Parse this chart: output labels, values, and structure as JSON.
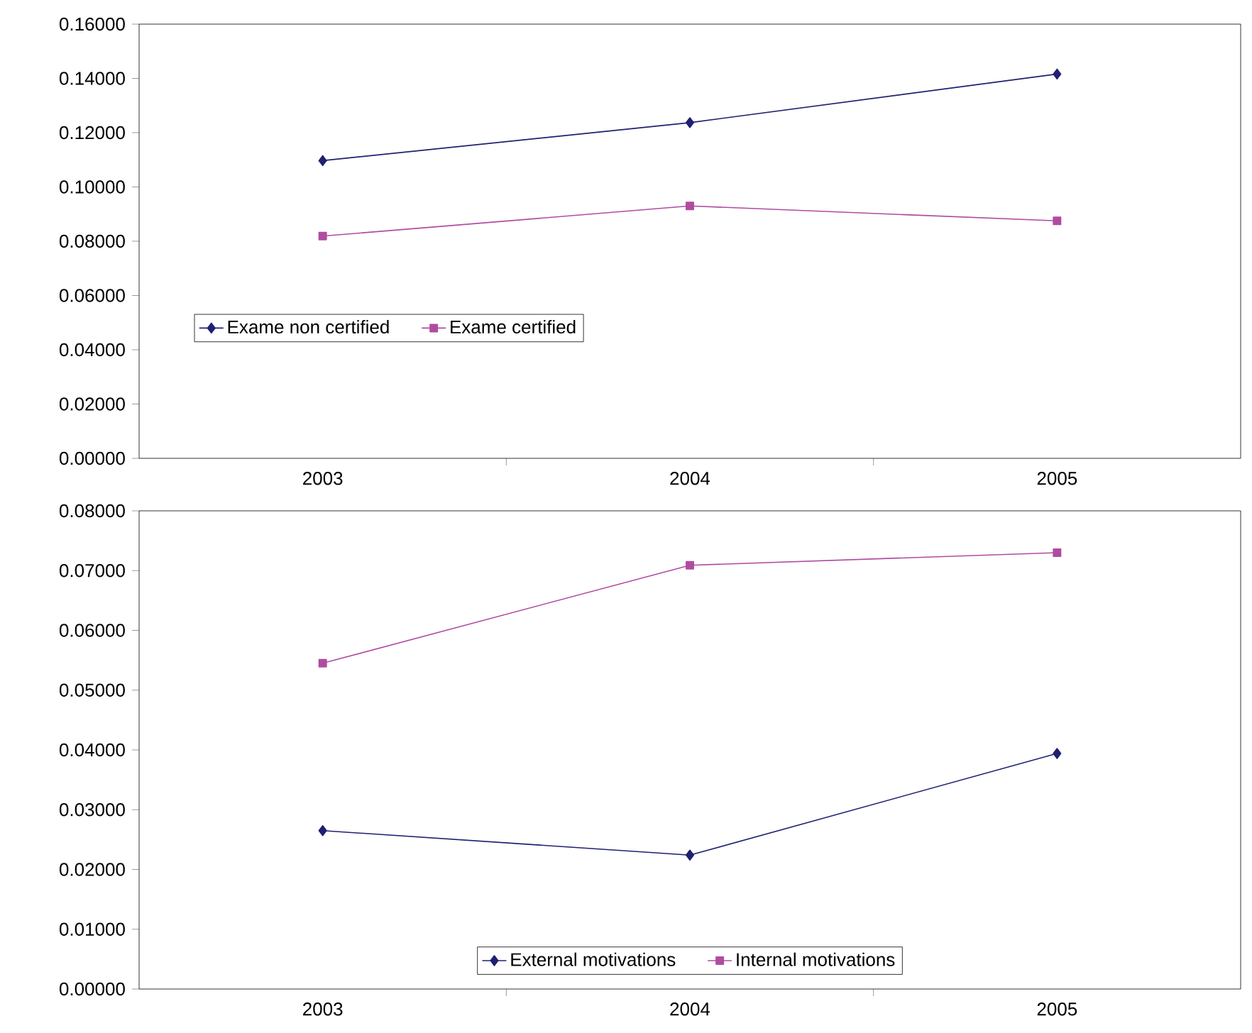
{
  "chart_data": [
    {
      "type": "line",
      "categories": [
        "2003",
        "2004",
        "2005"
      ],
      "series": [
        {
          "name": "Exame non certified",
          "color": "#1f2070",
          "marker": "diamond",
          "values": [
            0.1097,
            0.1237,
            0.1416
          ]
        },
        {
          "name": "Exame certified",
          "color": "#b04ca0",
          "marker": "square",
          "values": [
            0.0819,
            0.093,
            0.0875
          ]
        }
      ],
      "ylim": [
        0,
        0.16
      ],
      "yticks": [
        {
          "value": 0,
          "label": "0.00000"
        },
        {
          "value": 0.02,
          "label": "0.02000"
        },
        {
          "value": 0.04,
          "label": "0.04000"
        },
        {
          "value": 0.06,
          "label": "0.06000"
        },
        {
          "value": 0.08,
          "label": "0.08000"
        },
        {
          "value": 0.1,
          "label": "0.10000"
        },
        {
          "value": 0.12,
          "label": "0.12000"
        },
        {
          "value": 0.14,
          "label": "0.14000"
        },
        {
          "value": 0.16,
          "label": "0.16000"
        }
      ],
      "legend": "left",
      "grid": false
    },
    {
      "type": "line",
      "categories": [
        "2003",
        "2004",
        "2005"
      ],
      "series": [
        {
          "name": "External motivations",
          "color": "#1f2070",
          "marker": "diamond",
          "values": [
            0.0265,
            0.0224,
            0.0394
          ]
        },
        {
          "name": "Internal motivations",
          "color": "#b04ca0",
          "marker": "square",
          "values": [
            0.0545,
            0.0709,
            0.073
          ]
        }
      ],
      "ylim": [
        0,
        0.08
      ],
      "yticks": [
        {
          "value": 0,
          "label": "0.00000"
        },
        {
          "value": 0.01,
          "label": "0.01000"
        },
        {
          "value": 0.02,
          "label": "0.02000"
        },
        {
          "value": 0.03,
          "label": "0.03000"
        },
        {
          "value": 0.04,
          "label": "0.04000"
        },
        {
          "value": 0.05,
          "label": "0.05000"
        },
        {
          "value": 0.06,
          "label": "0.06000"
        },
        {
          "value": 0.07,
          "label": "0.07000"
        },
        {
          "value": 0.08,
          "label": "0.08000"
        }
      ],
      "legend": "bottom",
      "grid": false
    }
  ]
}
